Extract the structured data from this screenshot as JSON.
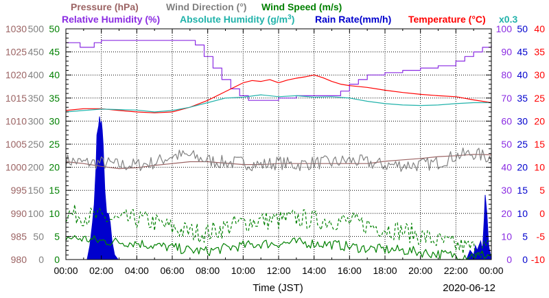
{
  "chart_data": {
    "type": "line",
    "date": "2020-06-12",
    "xlabel": "Time (JST)",
    "x_ticks": [
      "00:00",
      "02:00",
      "04:00",
      "06:00",
      "08:00",
      "10:00",
      "12:00",
      "14:00",
      "16:00",
      "18:00",
      "20:00",
      "22:00",
      "00:00"
    ],
    "xlim_hours": [
      0,
      24
    ],
    "grid": true,
    "legend": {
      "row1": [
        {
          "label": "Pressure (hPa)",
          "color": "#9b6363"
        },
        {
          "label": "Wind Direction (°)",
          "color": "#808080"
        },
        {
          "label": "Wind Speed (m/s)",
          "color": "#008000"
        }
      ],
      "row2": [
        {
          "label": "Relative Humidity (%)",
          "color": "#8a2be2"
        },
        {
          "label": "Absolute Humidity (g/m",
          "sup": "3",
          "tail": ")",
          "color": "#20b2aa"
        },
        {
          "label": "Rain Rate(mm/h)",
          "color": "#0000cd"
        },
        {
          "label": "Temperature (°C)",
          "color": "#ff0000"
        },
        {
          "label": "x0.3",
          "color": "#20b2aa"
        }
      ]
    },
    "axes": {
      "pressure": {
        "ticks": [
          "1030",
          "1025",
          "1020",
          "1015",
          "1010",
          "1005",
          "1000",
          "995",
          "990",
          "985",
          "980"
        ],
        "range": [
          980,
          1030
        ],
        "color": "#9b6363"
      },
      "wind_direction": {
        "ticks": [
          "500",
          "450",
          "400",
          "350",
          "300",
          "250",
          "200",
          "150",
          "100",
          "50",
          "0"
        ],
        "range": [
          0,
          500
        ],
        "color": "#808080"
      },
      "wind_speed": {
        "ticks": [
          "50",
          "45",
          "40",
          "35",
          "30",
          "25",
          "20",
          "15",
          "10",
          "5",
          "0"
        ],
        "range": [
          0,
          50
        ],
        "color": "#008000"
      },
      "humidity": {
        "ticks": [
          "100",
          "90",
          "80",
          "70",
          "60",
          "50",
          "40",
          "30",
          "20",
          "10",
          "0"
        ],
        "range": [
          0,
          100
        ],
        "color": "#8a2be2"
      },
      "rain_rate": {
        "ticks": [
          "50",
          "45",
          "40",
          "35",
          "30",
          "25",
          "20",
          "15",
          "10",
          "5",
          "0"
        ],
        "range": [
          0,
          50
        ],
        "color": "#0000cd"
      },
      "temperature": {
        "ticks": [
          "40",
          "35",
          "30",
          "25",
          "20",
          "15",
          "10",
          "5",
          "0",
          "-5",
          "-10"
        ],
        "range": [
          -10,
          40
        ],
        "color": "#ff0000"
      }
    },
    "series": [
      {
        "name": "Relative Humidity (%)",
        "axis": "humidity",
        "color": "#8a2be2",
        "step": true,
        "x": [
          0,
          0.4,
          0.8,
          1.2,
          1.6,
          2,
          2.5,
          3,
          4,
          5,
          6,
          6.8,
          7.3,
          7.8,
          8.3,
          8.8,
          9.3,
          9.8,
          10.3,
          11,
          12,
          13,
          14,
          14.5,
          15,
          15.5,
          16,
          16.5,
          17,
          18,
          19,
          20,
          21,
          22,
          22.5,
          23,
          23.5,
          24
        ],
        "values": [
          94,
          94,
          92,
          92,
          94,
          95,
          95,
          95,
          95,
          95,
          95,
          95,
          93,
          88,
          83,
          78,
          74,
          71,
          69,
          69,
          70,
          71,
          71,
          71,
          71,
          73,
          76,
          78,
          80,
          81,
          82,
          83,
          84,
          86,
          88,
          90,
          92,
          93
        ]
      },
      {
        "name": "Temperature (°C)",
        "axis": "temperature",
        "color": "#ff0000",
        "x": [
          0,
          1,
          2,
          3,
          4,
          5,
          6,
          7,
          8,
          9,
          10,
          10.5,
          11,
          11.5,
          12,
          12.5,
          13,
          13.5,
          14,
          14.5,
          15,
          15.5,
          16,
          17,
          18,
          19,
          20,
          21,
          22,
          23,
          24
        ],
        "values": [
          22.3,
          22.7,
          22.7,
          22.3,
          22,
          21.8,
          22,
          23,
          24.5,
          26.4,
          28.3,
          28.8,
          28.6,
          29,
          28.3,
          28.9,
          29.3,
          29.6,
          30,
          29.4,
          28.6,
          28,
          27.7,
          27.3,
          26.7,
          26.2,
          25.8,
          25.5,
          25.3,
          24.6,
          24
        ]
      },
      {
        "name": "Absolute Humidity (g/m3)",
        "axis": "temperature",
        "color": "#20b2aa",
        "x": [
          0,
          1,
          2,
          3,
          4,
          5,
          6,
          7,
          8,
          9,
          10,
          11,
          12,
          13,
          14,
          15,
          16,
          17,
          18,
          19,
          20,
          21,
          22,
          23,
          24
        ],
        "values": [
          22,
          22.3,
          22.6,
          22.5,
          22.4,
          22,
          22.3,
          23,
          24,
          25,
          25.2,
          25.7,
          25.3,
          25.5,
          25.2,
          25.3,
          25,
          24.3,
          23.8,
          23.5,
          23.4,
          23.5,
          23.8,
          24,
          24
        ]
      },
      {
        "name": "Pressure (hPa)",
        "axis": "pressure",
        "color": "#9b6363",
        "x": [
          0,
          1,
          2,
          3,
          4,
          5,
          6,
          7,
          8,
          9,
          10,
          11,
          12,
          13,
          14,
          15,
          16,
          17,
          18,
          19,
          20,
          21,
          22,
          23,
          24
        ],
        "values": [
          1001.2,
          1000.8,
          1000.2,
          999.7,
          999.9,
          1000.4,
          1000.8,
          1001.2,
          1001.2,
          1000.9,
          1000.6,
          1000.6,
          1000.8,
          1000.8,
          1000.8,
          1000.8,
          1000.8,
          1000.8,
          1001.3,
          1001.6,
          1001.9,
          1002.3,
          1002.5,
          1002.8,
          1002.7
        ]
      },
      {
        "name": "Wind Direction (°)",
        "axis": "wind_direction",
        "color": "#808080",
        "style": "noisy",
        "spread": 15,
        "x": [
          0,
          1,
          2,
          3,
          4,
          5,
          6,
          7,
          8,
          9,
          10,
          11,
          12,
          13,
          14,
          15,
          16,
          17,
          18,
          19,
          20,
          21,
          22,
          23,
          24
        ],
        "values": [
          215,
          210,
          210,
          205,
          205,
          210,
          225,
          225,
          215,
          210,
          210,
          205,
          210,
          205,
          210,
          210,
          215,
          210,
          205,
          205,
          205,
          210,
          225,
          230,
          220
        ]
      },
      {
        "name": "Wind Speed (m/s) dashed",
        "axis": "wind_speed",
        "color": "#008000",
        "dashed": true,
        "style": "noisy",
        "spread": 2.2,
        "x": [
          0,
          1,
          2,
          3,
          4,
          5,
          6,
          7,
          8,
          9,
          10,
          11,
          12,
          13,
          14,
          15,
          16,
          17,
          18,
          19,
          20,
          21,
          22,
          23,
          24
        ],
        "values": [
          10,
          9.5,
          9,
          8.5,
          8.8,
          8,
          6.8,
          6,
          5.8,
          7,
          8,
          8.5,
          8.5,
          9,
          8.5,
          8.5,
          8.2,
          7.5,
          6.8,
          6.2,
          5.2,
          4,
          3,
          2.4,
          2.6
        ]
      },
      {
        "name": "Wind Speed (m/s) solid",
        "axis": "wind_speed",
        "color": "#008000",
        "style": "noisy",
        "spread": 1.1,
        "x": [
          0,
          1,
          2,
          3,
          4,
          5,
          6,
          7,
          8,
          9,
          10,
          11,
          12,
          13,
          14,
          15,
          16,
          17,
          18,
          19,
          20,
          21,
          22,
          23,
          24
        ],
        "values": [
          4.8,
          4.5,
          4,
          3.8,
          3.6,
          3,
          2.6,
          2,
          1.8,
          2.5,
          3,
          3.4,
          3.5,
          3.7,
          3.5,
          3.3,
          2.8,
          2.4,
          2.2,
          2,
          1.6,
          1.2,
          0.9,
          0.9,
          1
        ]
      },
      {
        "name": "Rain Rate (mm/h)",
        "axis": "rain_rate",
        "color": "#0000cd",
        "fill": true,
        "x": [
          0,
          1.2,
          1.35,
          1.5,
          1.6,
          1.7,
          1.75,
          1.85,
          1.9,
          1.95,
          2,
          2.05,
          2.1,
          2.15,
          2.2,
          2.3,
          2.4,
          2.5,
          2.6,
          2.75,
          2.95,
          3.0,
          22.6,
          22.8,
          23,
          23.1,
          23.2,
          23.3,
          23.4,
          23.5,
          23.6,
          23.65,
          23.75,
          23.85,
          24
        ],
        "values": [
          0,
          0,
          3,
          8,
          12,
          20,
          27,
          29,
          31,
          29,
          30,
          28,
          25,
          20,
          15,
          10,
          10,
          8,
          4,
          1,
          0,
          0,
          0,
          2,
          1,
          3,
          2,
          3,
          4,
          2,
          9,
          14,
          10,
          3,
          0
        ]
      }
    ]
  }
}
